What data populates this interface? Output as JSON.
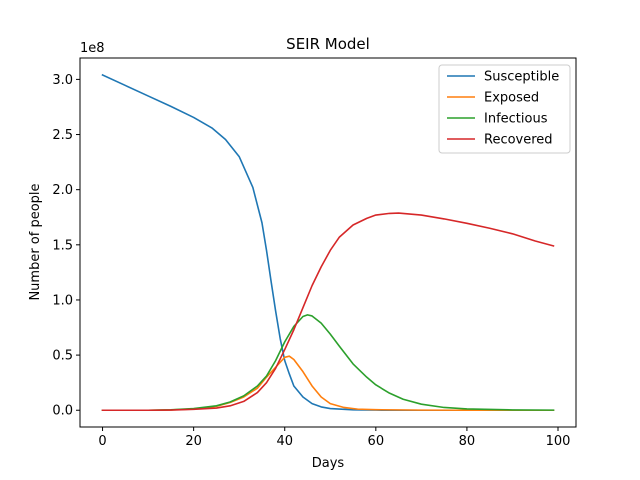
{
  "chart_data": {
    "type": "line",
    "title": "SEIR Model",
    "xlabel": "Days",
    "ylabel": "Number of people",
    "y_multiplier_label": "1e8",
    "xlim": [
      -4.95,
      103.95
    ],
    "ylim": [
      -0.152,
      3.194
    ],
    "xticks": [
      0,
      20,
      40,
      60,
      80,
      100
    ],
    "xtick_labels": [
      "0",
      "20",
      "40",
      "60",
      "80",
      "100"
    ],
    "yticks": [
      0.0,
      0.5,
      1.0,
      1.5,
      2.0,
      2.5,
      3.0
    ],
    "ytick_labels": [
      "0.0",
      "0.5",
      "1.0",
      "1.5",
      "2.0",
      "2.5",
      "3.0"
    ],
    "grid": false,
    "legend_position": "top-right",
    "series": [
      {
        "name": "Susceptible",
        "color": "#1f77b4",
        "points": [
          [
            0,
            3.04
          ],
          [
            5,
            2.945
          ],
          [
            10,
            2.85
          ],
          [
            15,
            2.755
          ],
          [
            20,
            2.655
          ],
          [
            24,
            2.56
          ],
          [
            27,
            2.455
          ],
          [
            30,
            2.3
          ],
          [
            33,
            2.02
          ],
          [
            35,
            1.7
          ],
          [
            36,
            1.45
          ],
          [
            37,
            1.17
          ],
          [
            38,
            0.9
          ],
          [
            39,
            0.65
          ],
          [
            40,
            0.45
          ],
          [
            41,
            0.33
          ],
          [
            42,
            0.22
          ],
          [
            44,
            0.12
          ],
          [
            46,
            0.06
          ],
          [
            48,
            0.03
          ],
          [
            50,
            0.015
          ],
          [
            55,
            0.004
          ],
          [
            60,
            0.001
          ],
          [
            70,
            0.0
          ],
          [
            80,
            0.0
          ],
          [
            99,
            0.0
          ]
        ]
      },
      {
        "name": "Exposed",
        "color": "#ff7f0e",
        "points": [
          [
            0,
            0.0
          ],
          [
            10,
            0.0
          ],
          [
            15,
            0.003
          ],
          [
            20,
            0.012
          ],
          [
            25,
            0.035
          ],
          [
            28,
            0.07
          ],
          [
            31,
            0.12
          ],
          [
            34,
            0.2
          ],
          [
            36,
            0.3
          ],
          [
            38,
            0.39
          ],
          [
            40,
            0.48
          ],
          [
            41,
            0.49
          ],
          [
            42,
            0.46
          ],
          [
            44,
            0.35
          ],
          [
            46,
            0.22
          ],
          [
            48,
            0.12
          ],
          [
            50,
            0.06
          ],
          [
            53,
            0.025
          ],
          [
            56,
            0.01
          ],
          [
            60,
            0.005
          ],
          [
            70,
            0.001
          ],
          [
            80,
            0.0
          ],
          [
            99,
            0.0
          ]
        ]
      },
      {
        "name": "Infectious",
        "color": "#2ca02c",
        "points": [
          [
            0,
            0.0
          ],
          [
            10,
            0.0
          ],
          [
            15,
            0.004
          ],
          [
            20,
            0.015
          ],
          [
            25,
            0.04
          ],
          [
            28,
            0.075
          ],
          [
            31,
            0.13
          ],
          [
            34,
            0.22
          ],
          [
            36,
            0.31
          ],
          [
            38,
            0.45
          ],
          [
            40,
            0.62
          ],
          [
            42,
            0.76
          ],
          [
            44,
            0.85
          ],
          [
            45,
            0.865
          ],
          [
            46,
            0.855
          ],
          [
            48,
            0.79
          ],
          [
            50,
            0.69
          ],
          [
            52,
            0.58
          ],
          [
            55,
            0.42
          ],
          [
            58,
            0.3
          ],
          [
            60,
            0.23
          ],
          [
            63,
            0.155
          ],
          [
            66,
            0.1
          ],
          [
            70,
            0.055
          ],
          [
            75,
            0.025
          ],
          [
            80,
            0.012
          ],
          [
            90,
            0.003
          ],
          [
            99,
            0.001
          ]
        ]
      },
      {
        "name": "Recovered",
        "color": "#d62728",
        "points": [
          [
            0,
            0.0
          ],
          [
            10,
            0.0
          ],
          [
            15,
            0.002
          ],
          [
            20,
            0.008
          ],
          [
            25,
            0.02
          ],
          [
            28,
            0.04
          ],
          [
            31,
            0.08
          ],
          [
            34,
            0.16
          ],
          [
            36,
            0.25
          ],
          [
            38,
            0.38
          ],
          [
            40,
            0.55
          ],
          [
            42,
            0.73
          ],
          [
            44,
            0.93
          ],
          [
            46,
            1.13
          ],
          [
            48,
            1.3
          ],
          [
            50,
            1.45
          ],
          [
            52,
            1.57
          ],
          [
            55,
            1.68
          ],
          [
            58,
            1.74
          ],
          [
            60,
            1.77
          ],
          [
            63,
            1.785
          ],
          [
            65,
            1.788
          ],
          [
            70,
            1.77
          ],
          [
            75,
            1.735
          ],
          [
            80,
            1.695
          ],
          [
            85,
            1.65
          ],
          [
            90,
            1.6
          ],
          [
            95,
            1.535
          ],
          [
            99,
            1.49
          ]
        ]
      }
    ]
  }
}
